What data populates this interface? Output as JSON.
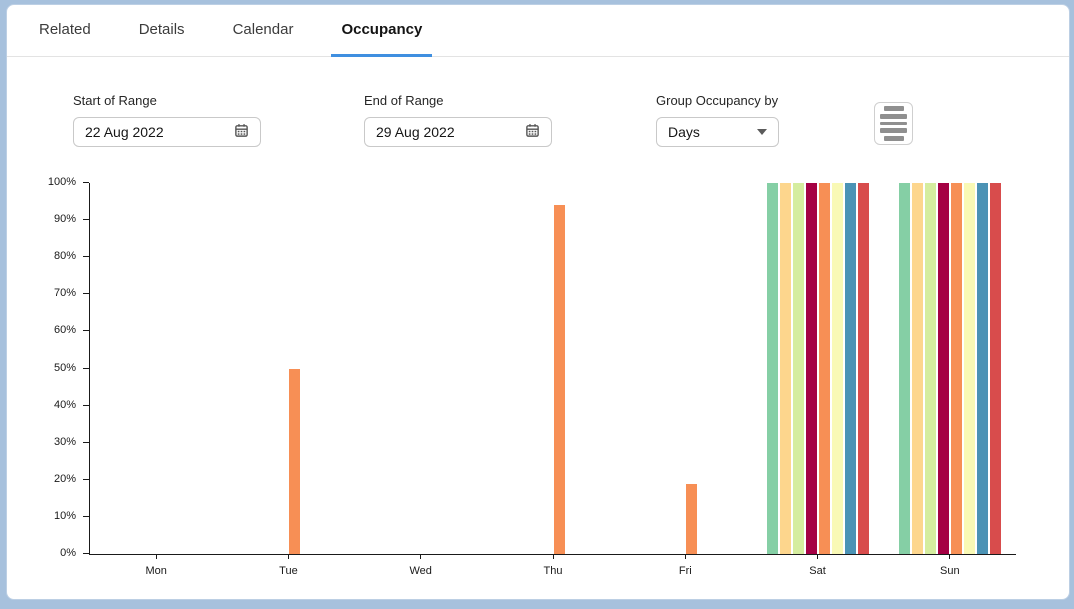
{
  "page": {
    "background": "#a7c1dd",
    "card_background": "#ffffff"
  },
  "tabs": {
    "items": [
      {
        "label": "Related",
        "active": false
      },
      {
        "label": "Details",
        "active": false
      },
      {
        "label": "Calendar",
        "active": false
      },
      {
        "label": "Occupancy",
        "active": true
      }
    ],
    "active_underline_color": "#3f8fe0"
  },
  "controls": {
    "start_of_range": {
      "label": "Start of Range",
      "value": "22 Aug 2022",
      "icon": "calendar-icon"
    },
    "end_of_range": {
      "label": "End of Range",
      "value": "29 Aug 2022",
      "icon": "calendar-icon"
    },
    "group_occupancy_by": {
      "label": "Group Occupancy by",
      "value": "Days",
      "icon": "caret-down-icon"
    },
    "chart_menu": {
      "icon": "table-rows-icon"
    }
  },
  "chart_data": {
    "type": "bar",
    "title": "",
    "xlabel": "",
    "ylabel": "",
    "categories": [
      "Mon",
      "Tue",
      "Wed",
      "Thu",
      "Fri",
      "Sat",
      "Sun"
    ],
    "series": [
      {
        "name": "series-1",
        "color": "#85cfa5",
        "values": [
          0,
          0,
          0,
          0,
          0,
          100,
          100
        ]
      },
      {
        "name": "series-2",
        "color": "#fdd68d",
        "values": [
          0,
          0,
          0,
          0,
          0,
          100,
          100
        ]
      },
      {
        "name": "series-3",
        "color": "#d5ed9f",
        "values": [
          0,
          0,
          0,
          0,
          0,
          100,
          100
        ]
      },
      {
        "name": "series-4",
        "color": "#a50144",
        "values": [
          0,
          0,
          0,
          0,
          0,
          100,
          100
        ]
      },
      {
        "name": "series-5",
        "color": "#f78f55",
        "values": [
          0,
          50,
          0,
          94,
          19,
          100,
          100
        ]
      },
      {
        "name": "series-6",
        "color": "#f9f9b5",
        "values": [
          0,
          0,
          0,
          0,
          0,
          100,
          100
        ]
      },
      {
        "name": "series-7",
        "color": "#4b93b5",
        "values": [
          0,
          0,
          0,
          0,
          0,
          100,
          100
        ]
      },
      {
        "name": "series-8",
        "color": "#d84c4c",
        "values": [
          0,
          0,
          0,
          0,
          0,
          100,
          100
        ]
      }
    ],
    "ylim": [
      0,
      100
    ],
    "yticks": [
      "0%",
      "10%",
      "20%",
      "30%",
      "40%",
      "50%",
      "60%",
      "70%",
      "80%",
      "90%",
      "100%"
    ],
    "grid": false,
    "legend": false,
    "axis_color": "#1a1a1a"
  }
}
